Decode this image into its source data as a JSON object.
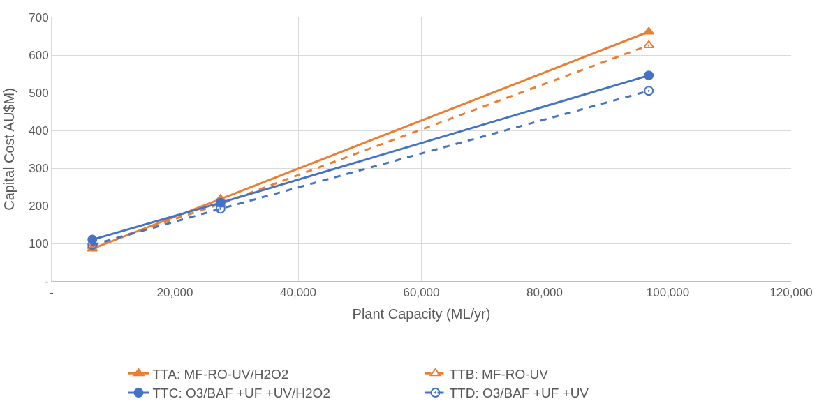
{
  "chart_data": {
    "type": "line",
    "xlabel": "Plant Capacity (ML/yr)",
    "ylabel": "Capital Cost AU$M)",
    "x": [
      6600,
      27400,
      96900
    ],
    "series": [
      {
        "name": "TTA: MF-RO-UV/H2O2",
        "color": "#ed7d31",
        "values": [
          86,
          218,
          662
        ],
        "marker": "triangle",
        "line_style": "solid"
      },
      {
        "name": "TTB: MF-RO-UV",
        "color": "#ed7d31",
        "values": [
          93,
          205,
          626
        ],
        "marker": "triangle-open",
        "line_style": "dashed"
      },
      {
        "name": "TTC: O3/BAF +UF +UV/H2O2",
        "color": "#4472c4",
        "values": [
          110,
          208,
          546
        ],
        "marker": "circle",
        "line_style": "solid"
      },
      {
        "name": "TTD: O3/BAF +UF +UV",
        "color": "#4472c4",
        "values": [
          96,
          192,
          505
        ],
        "marker": "circle-open",
        "line_style": "dashed"
      }
    ],
    "xlim": [
      0,
      120000
    ],
    "xticks": [
      {
        "value": 0,
        "label": "-"
      },
      {
        "value": 20000,
        "label": "20,000"
      },
      {
        "value": 40000,
        "label": "40,000"
      },
      {
        "value": 60000,
        "label": "60,000"
      },
      {
        "value": 80000,
        "label": "80,000"
      },
      {
        "value": 100000,
        "label": "100,000"
      },
      {
        "value": 120000,
        "label": "120,000"
      }
    ],
    "ylim": [
      0,
      700
    ],
    "yticks": [
      {
        "value": 0,
        "label": "-"
      },
      100,
      200,
      300,
      400,
      500,
      600,
      700
    ],
    "grid": true,
    "legend": "bottom"
  }
}
